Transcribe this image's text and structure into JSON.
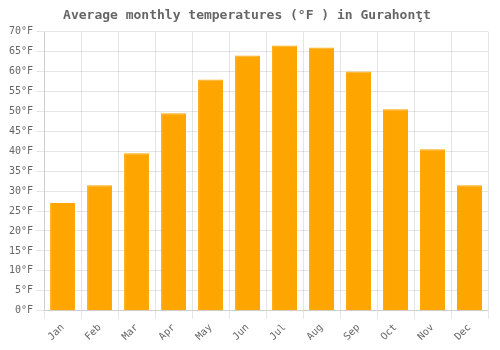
{
  "chart_data": {
    "type": "bar",
    "title": "Average monthly temperatures (°F ) in Gurahonţt",
    "categories": [
      "Jan",
      "Feb",
      "Mar",
      "Apr",
      "May",
      "Jun",
      "Jul",
      "Aug",
      "Sep",
      "Oct",
      "Nov",
      "Dec"
    ],
    "values": [
      27,
      31.5,
      39.5,
      49.5,
      58,
      64,
      66.5,
      66,
      60,
      50.5,
      40.5,
      31.5
    ],
    "color": "#FFA500",
    "ylim": [
      0,
      70
    ],
    "yticks": [
      {
        "value": 0,
        "label": "0°F"
      },
      {
        "value": 5,
        "label": "5°F"
      },
      {
        "value": 10,
        "label": "10°F"
      },
      {
        "value": 15,
        "label": "15°F"
      },
      {
        "value": 20,
        "label": "20°F"
      },
      {
        "value": 25,
        "label": "25°F"
      },
      {
        "value": 30,
        "label": "30°F"
      },
      {
        "value": 35,
        "label": "35°F"
      },
      {
        "value": 40,
        "label": "40°F"
      },
      {
        "value": 45,
        "label": "45°F"
      },
      {
        "value": 50,
        "label": "50°F"
      },
      {
        "value": 55,
        "label": "55°F"
      },
      {
        "value": 60,
        "label": "60°F"
      },
      {
        "value": 65,
        "label": "65°F"
      },
      {
        "value": 70,
        "label": "70°F"
      }
    ],
    "grid": true
  }
}
